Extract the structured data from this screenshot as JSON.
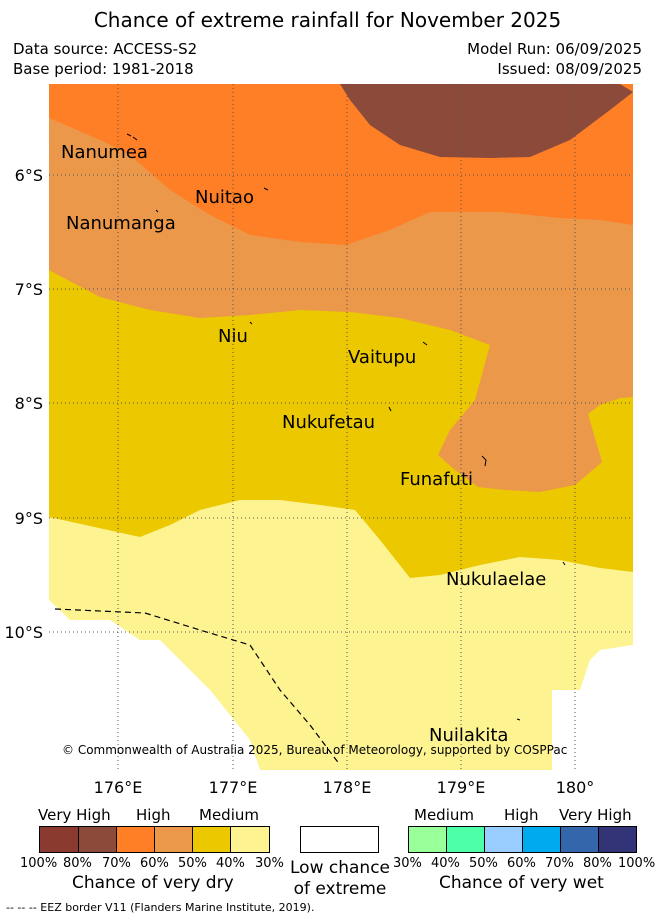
{
  "title": "Chance of extreme rainfall for November 2025",
  "meta": {
    "data_source": "Data source: ACCESS-S2",
    "base_period": "Base period: 1981-2018",
    "model_run": "Model Run: 06/09/2025",
    "issued": "Issued: 08/09/2025"
  },
  "map": {
    "lat_ticks": [
      "6°S",
      "7°S",
      "8°S",
      "9°S",
      "10°S"
    ],
    "lon_ticks": [
      "176°E",
      "177°E",
      "178°E",
      "179°E",
      "180°"
    ],
    "places": [
      "Nanumea",
      "Nuitao",
      "Nanumanga",
      "Niu",
      "Vaitupu",
      "Nukufetau",
      "Funafuti",
      "Nukulaelae",
      "Nuilakita"
    ],
    "credit": "© Commonwealth of Australia 2025, Bureau of Meteorology, supported by COSPPac",
    "colors": {
      "very_high_dry": "#8b4a3a",
      "high_dry": "#ff7f27",
      "medium_high_dry": "#eb984a",
      "medium_dry": "#ebc800",
      "low_dry": "#fdf491",
      "eez_line": "#000000"
    }
  },
  "legend": {
    "dry": {
      "headers": [
        "Very High",
        "High",
        "Medium"
      ],
      "percents": [
        "100%",
        "80%",
        "70%",
        "60%",
        "50%",
        "40%",
        "30%"
      ],
      "colors": [
        "#8b3a2f",
        "#8b4a3a",
        "#ff7f27",
        "#eb984a",
        "#ebc800",
        "#fdf491"
      ],
      "caption": "Chance of very dry"
    },
    "low": {
      "caption_line1": "Low chance",
      "caption_line2": "of extreme",
      "color": "#ffffff"
    },
    "wet": {
      "headers": [
        "Medium",
        "High",
        "Very High"
      ],
      "percents": [
        "30%",
        "40%",
        "50%",
        "60%",
        "70%",
        "80%",
        "100%"
      ],
      "colors": [
        "#99ff99",
        "#4dffa6",
        "#99ccff",
        "#00aaee",
        "#3366aa",
        "#333377"
      ],
      "caption": "Chance of very wet"
    },
    "eez_note": "--  --  -- EEZ border V11 (Flanders Marine Institute, 2019)."
  }
}
